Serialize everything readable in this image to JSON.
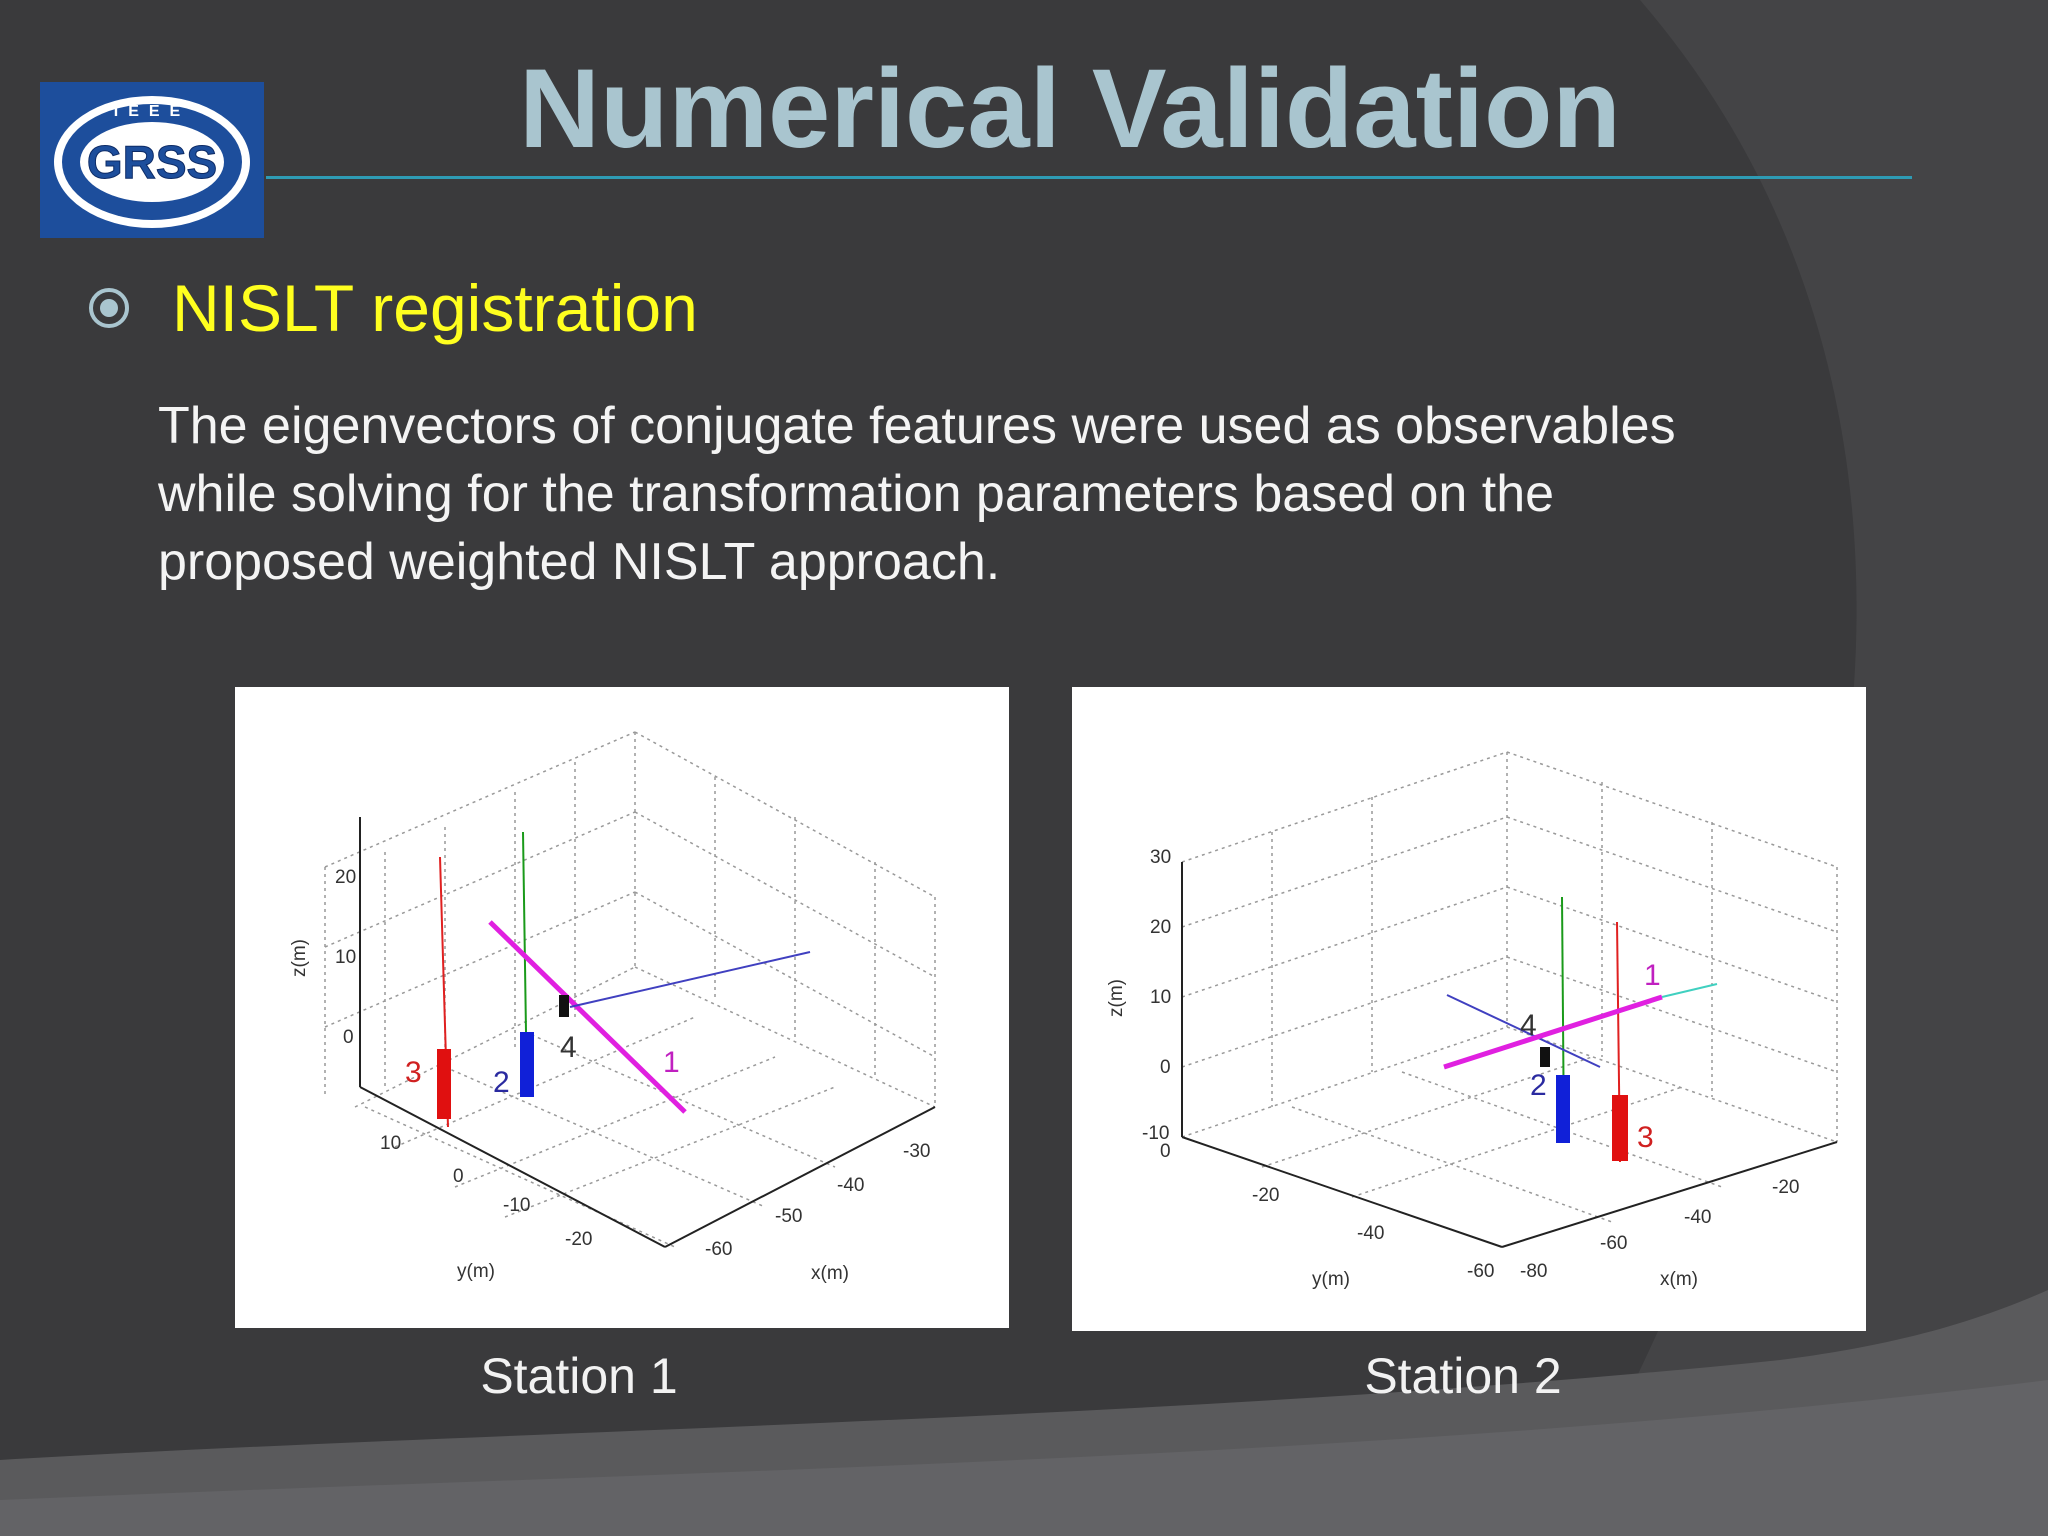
{
  "slide": {
    "title": "Numerical Validation",
    "logo": {
      "text": "GRSS",
      "arc_text": "IEEE"
    },
    "bullet": {
      "icon": "target-bullet-icon",
      "text": "NISLT registration"
    },
    "body_lines": [
      "The eigenvectors of conjugate features were used as observables",
      "while solving for the transformation parameters based on the",
      "proposed weighted NISLT approach."
    ],
    "colors": {
      "background": "#3a3a3c",
      "title": "#a9c5cf",
      "bullet_text": "#ffff1f",
      "rule": "#2e9bb4",
      "logo": "#1d4e9c"
    }
  },
  "figures": [
    {
      "caption": "Station 1",
      "axes": {
        "xlabel": "x(m)",
        "ylabel": "y(m)",
        "zlabel": "z(m)",
        "z_ticks": [
          "20",
          "10",
          "0"
        ],
        "y_ticks": [
          "10",
          "0",
          "-10",
          "-20"
        ],
        "x_ticks": [
          "-30",
          "-40",
          "-50",
          "-60"
        ]
      },
      "feature_labels": [
        "3",
        "2",
        "4",
        "1"
      ]
    },
    {
      "caption": "Station 2",
      "axes": {
        "xlabel": "x(m)",
        "ylabel": "y(m)",
        "zlabel": "z(m)",
        "z_ticks": [
          "30",
          "20",
          "10",
          "0",
          "-10"
        ],
        "y_ticks": [
          "0",
          "-20",
          "-40",
          "-60"
        ],
        "x_ticks": [
          "-20",
          "-40",
          "-60",
          "-80"
        ]
      },
      "feature_labels": [
        "1",
        "4",
        "2",
        "3"
      ]
    }
  ]
}
